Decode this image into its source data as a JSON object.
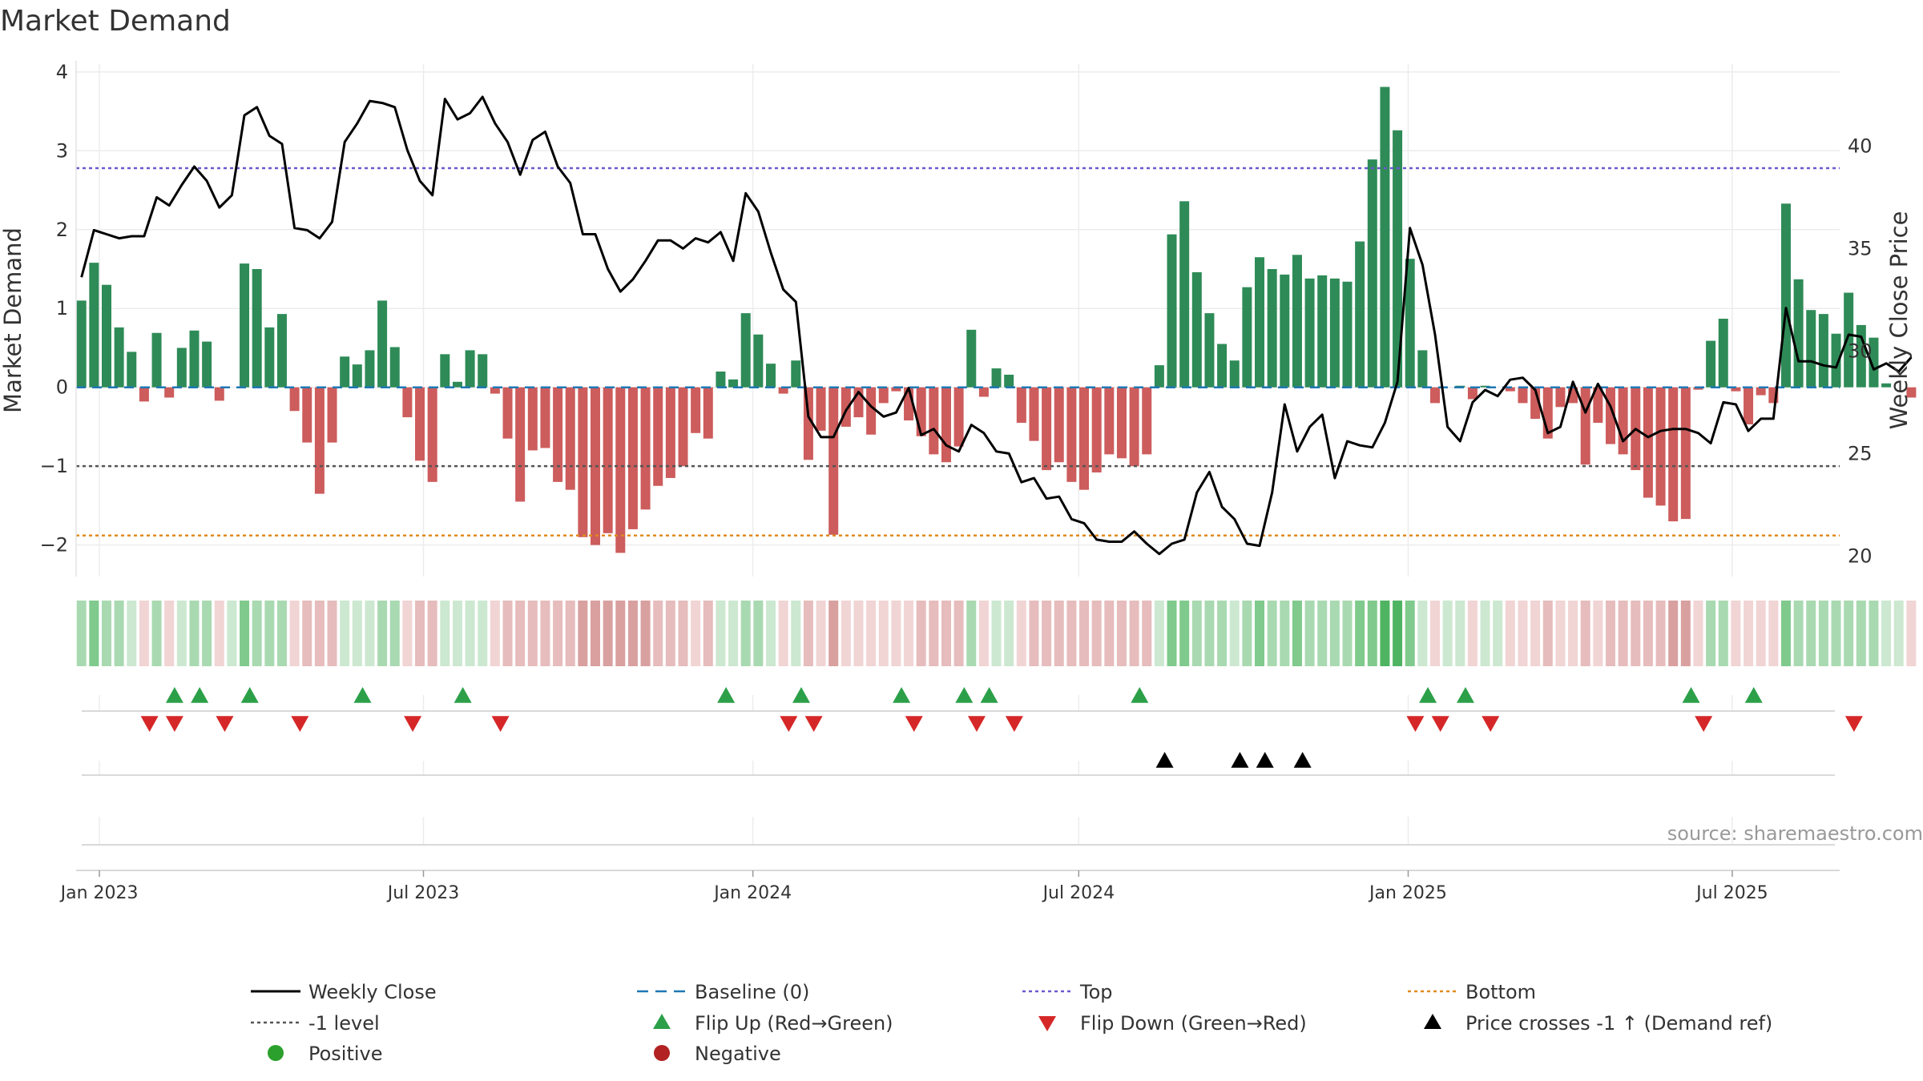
{
  "title": "Market Demand",
  "source": "source: sharemaestro.com",
  "chart_data": {
    "type": "bar",
    "title": "Market Demand",
    "ylabel_left": "Market Demand",
    "ylabel_right": "Weekly Close Price",
    "ylim_left": [
      -2.4,
      4.1
    ],
    "ylim_right": [
      19.0,
      44.0
    ],
    "yticks_left": [
      "4",
      "3",
      "2",
      "1",
      "0",
      "−1",
      "−2"
    ],
    "yticks_left_values": [
      4,
      3,
      2,
      1,
      0,
      -1,
      -2
    ],
    "yticks_right": [
      "40",
      "35",
      "30",
      "25",
      "20"
    ],
    "yticks_right_values": [
      40,
      35,
      30,
      25,
      20
    ],
    "x_start": "2022-12-19",
    "x_end": "2025-08-30",
    "x_ticks": [
      {
        "label": "Jan 2023",
        "date": "2023-01-01"
      },
      {
        "label": "Jul 2023",
        "date": "2023-07-01"
      },
      {
        "label": "Jan 2024",
        "date": "2024-01-01"
      },
      {
        "label": "Jul 2024",
        "date": "2024-07-01"
      },
      {
        "label": "Jan 2025",
        "date": "2025-01-01"
      },
      {
        "label": "Jul 2025",
        "date": "2025-07-01"
      }
    ],
    "first_week": "2022-12-22",
    "reference_lines": {
      "baseline": 0,
      "top": 2.78,
      "minus_one": -1,
      "bottom": -1.88
    },
    "demand": [
      1.1,
      1.58,
      1.3,
      0.76,
      0.45,
      -0.18,
      0.69,
      -0.13,
      0.5,
      0.72,
      0.58,
      -0.17,
      0,
      1.57,
      1.5,
      0.76,
      0.93,
      -0.3,
      -0.7,
      -1.35,
      -0.7,
      0.39,
      0.29,
      0.47,
      1.1,
      0.51,
      -0.38,
      -0.93,
      -1.2,
      0.42,
      0.07,
      0.47,
      0.42,
      -0.08,
      -0.65,
      -1.45,
      -0.8,
      -0.77,
      -1.2,
      -1.3,
      -1.9,
      -2.0,
      -1.85,
      -2.1,
      -1.8,
      -1.55,
      -1.25,
      -1.15,
      -1.0,
      -0.58,
      -0.65,
      0.2,
      0.1,
      0.94,
      0.67,
      0.3,
      -0.08,
      0.34,
      -0.92,
      -0.55,
      -1.87,
      -0.5,
      -0.38,
      -0.6,
      -0.2,
      -0.05,
      -0.42,
      -0.62,
      -0.85,
      -0.95,
      -0.75,
      0.73,
      -0.12,
      0.24,
      0.16,
      -0.45,
      -0.68,
      -1.05,
      -0.95,
      -1.2,
      -1.3,
      -1.08,
      -0.85,
      -0.9,
      -1.0,
      -0.85,
      0.28,
      1.94,
      2.36,
      1.46,
      0.94,
      0.55,
      0.34,
      1.27,
      1.65,
      1.5,
      1.43,
      1.68,
      1.38,
      1.42,
      1.38,
      1.34,
      1.85,
      2.89,
      3.81,
      3.26,
      1.63,
      0.47,
      -0.2,
      0,
      0.02,
      -0.15,
      0.02,
      0,
      -0.05,
      -0.2,
      -0.4,
      -0.65,
      -0.25,
      -0.2,
      -0.98,
      -0.45,
      -0.72,
      -0.85,
      -1.05,
      -1.4,
      -1.5,
      -1.7,
      -1.67,
      -0.03,
      0.59,
      0.87,
      -0.05,
      -0.47,
      -0.1,
      -0.2,
      2.33,
      1.37,
      0.98,
      0.93,
      0.68,
      1.2,
      0.79,
      0.63,
      0.05,
      0,
      -0.13
    ],
    "weekly_close": [
      33.6,
      35.9,
      35.7,
      35.5,
      35.6,
      35.6,
      37.5,
      37.1,
      38.1,
      39.0,
      38.3,
      37.0,
      37.6,
      41.5,
      41.9,
      40.5,
      40.1,
      36.0,
      35.9,
      35.5,
      36.3,
      40.2,
      41.1,
      42.2,
      42.1,
      41.9,
      39.8,
      38.3,
      37.6,
      42.3,
      41.3,
      41.6,
      42.4,
      41.1,
      40.2,
      38.6,
      40.3,
      40.7,
      39.0,
      38.2,
      35.7,
      35.7,
      34.0,
      32.9,
      33.5,
      34.4,
      35.4,
      35.4,
      35.0,
      35.5,
      35.3,
      35.8,
      34.4,
      37.7,
      36.8,
      34.8,
      33.0,
      32.4,
      26.8,
      25.8,
      25.8,
      27.1,
      28.0,
      27.3,
      26.8,
      27.0,
      28.2,
      25.9,
      26.2,
      25.4,
      25.1,
      26.4,
      26.0,
      25.1,
      25.0,
      23.6,
      23.8,
      22.8,
      22.9,
      21.8,
      21.6,
      20.8,
      20.7,
      20.7,
      21.2,
      20.6,
      20.1,
      20.6,
      20.8,
      23.1,
      24.1,
      22.4,
      21.8,
      20.6,
      20.5,
      23.1,
      27.4,
      25.1,
      26.3,
      26.9,
      23.8,
      25.6,
      25.4,
      25.3,
      26.5,
      28.5,
      36.0,
      34.2,
      30.8,
      26.3,
      25.6,
      27.5,
      28.1,
      27.8,
      28.6,
      28.7,
      28.1,
      26.0,
      26.3,
      28.5,
      27.0,
      28.4,
      27.3,
      25.6,
      26.2,
      25.8,
      26.1,
      26.2,
      26.2,
      26.0,
      25.5,
      27.5,
      27.4,
      26.1,
      26.7,
      26.7,
      32.1,
      29.5,
      29.5,
      29.3,
      29.2,
      30.8,
      30.7,
      29.1,
      29.4,
      29.0,
      29.7
    ],
    "strip_colors": {
      "pos_light": "#cce8d0",
      "pos_mid": "#a9d9b1",
      "pos_strong": "#7fca8c",
      "pos_max": "#4fb461",
      "neg_light": "#f1d4d4",
      "neg_mid": "#e6bcbc",
      "neg_strong": "#d9a0a0"
    },
    "flip_up_dates": [
      "2023-02-12",
      "2023-02-26",
      "2023-03-26",
      "2023-05-28",
      "2023-07-23",
      "2023-12-17",
      "2024-01-28",
      "2024-03-24",
      "2024-04-28",
      "2024-05-12",
      "2024-08-04",
      "2025-01-12",
      "2025-02-02",
      "2025-06-08",
      "2025-07-13"
    ],
    "flip_down_dates": [
      "2023-01-29",
      "2023-02-12",
      "2023-03-12",
      "2023-04-23",
      "2023-06-25",
      "2023-08-13",
      "2024-01-21",
      "2024-02-04",
      "2024-03-31",
      "2024-05-05",
      "2024-05-26",
      "2025-01-05",
      "2025-01-19",
      "2025-02-16",
      "2025-06-15",
      "2025-09-07"
    ],
    "price_cross_dates": [
      "2024-08-18",
      "2024-09-29",
      "2024-10-13",
      "2024-11-03"
    ],
    "legend": [
      {
        "label": "Weekly Close",
        "symbol": "line",
        "color": "#000000"
      },
      {
        "label": "Baseline (0)",
        "symbol": "dash",
        "color": "#1f77b4"
      },
      {
        "label": "Top",
        "symbol": "dot",
        "color": "#6a5acd"
      },
      {
        "label": "Bottom",
        "symbol": "dot",
        "color": "#e08a1e"
      },
      {
        "label": "-1 level",
        "symbol": "dot",
        "color": "#555555"
      },
      {
        "label": "Flip Up (Red→Green)",
        "symbol": "tri-up",
        "color": "#2ca049"
      },
      {
        "label": "Flip Down (Green→Red)",
        "symbol": "tri-down",
        "color": "#d62728"
      },
      {
        "label": "Price crosses -1 ↑ (Demand ref)",
        "symbol": "tri-up",
        "color": "#000000"
      },
      {
        "label": "Positive",
        "symbol": "circle",
        "color": "#2ca02c"
      },
      {
        "label": "Negative",
        "symbol": "circle",
        "color": "#b22222"
      }
    ],
    "colors": {
      "positive_bar": "#2e8b57",
      "negative_bar": "#cd5c5c",
      "close_line": "#000000",
      "baseline": "#1f77b4",
      "top": "#6a5acd",
      "bottom": "#e08a1e",
      "minus_one": "#555555",
      "flip_up": "#2ca049",
      "flip_down": "#d62728",
      "cross": "#000000",
      "positive_dot": "#2ca02c",
      "negative_dot": "#b22222"
    }
  }
}
